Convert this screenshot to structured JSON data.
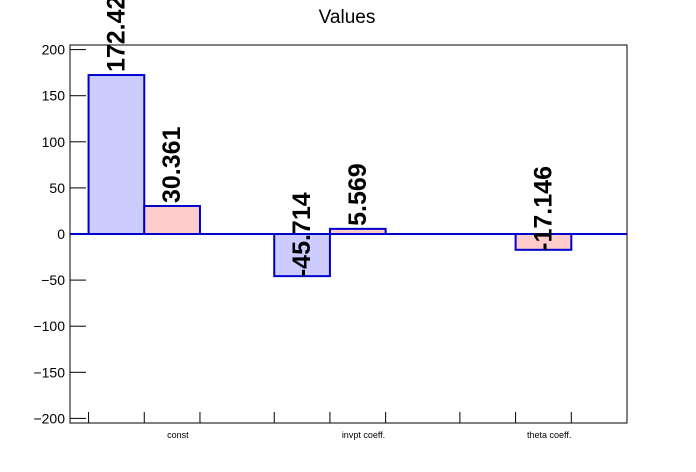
{
  "chart_data": {
    "type": "bar",
    "title": "Values",
    "categories": [
      "const",
      "invpt coeff.",
      "theta coeff."
    ],
    "series": [
      {
        "values": [
          172.42,
          -45.714,
          null
        ],
        "color": "#ccccff",
        "value_labels": [
          "172.42",
          "-45.714",
          ""
        ]
      },
      {
        "values": [
          30.361,
          5.569,
          -17.146
        ],
        "color": "#ffcccc",
        "value_labels": [
          "30.361",
          "5.569",
          "-17.146"
        ]
      }
    ],
    "edge_color": "#0000cc",
    "ylim": [
      -205,
      205
    ],
    "yticks": [
      -200,
      -150,
      -100,
      -50,
      0,
      50,
      100,
      150,
      200
    ],
    "ytick_labels": [
      "−200",
      "−150",
      "−100",
      "−50",
      "0",
      "50",
      "100",
      "150",
      "200"
    ],
    "grid": false,
    "legend": "none"
  }
}
